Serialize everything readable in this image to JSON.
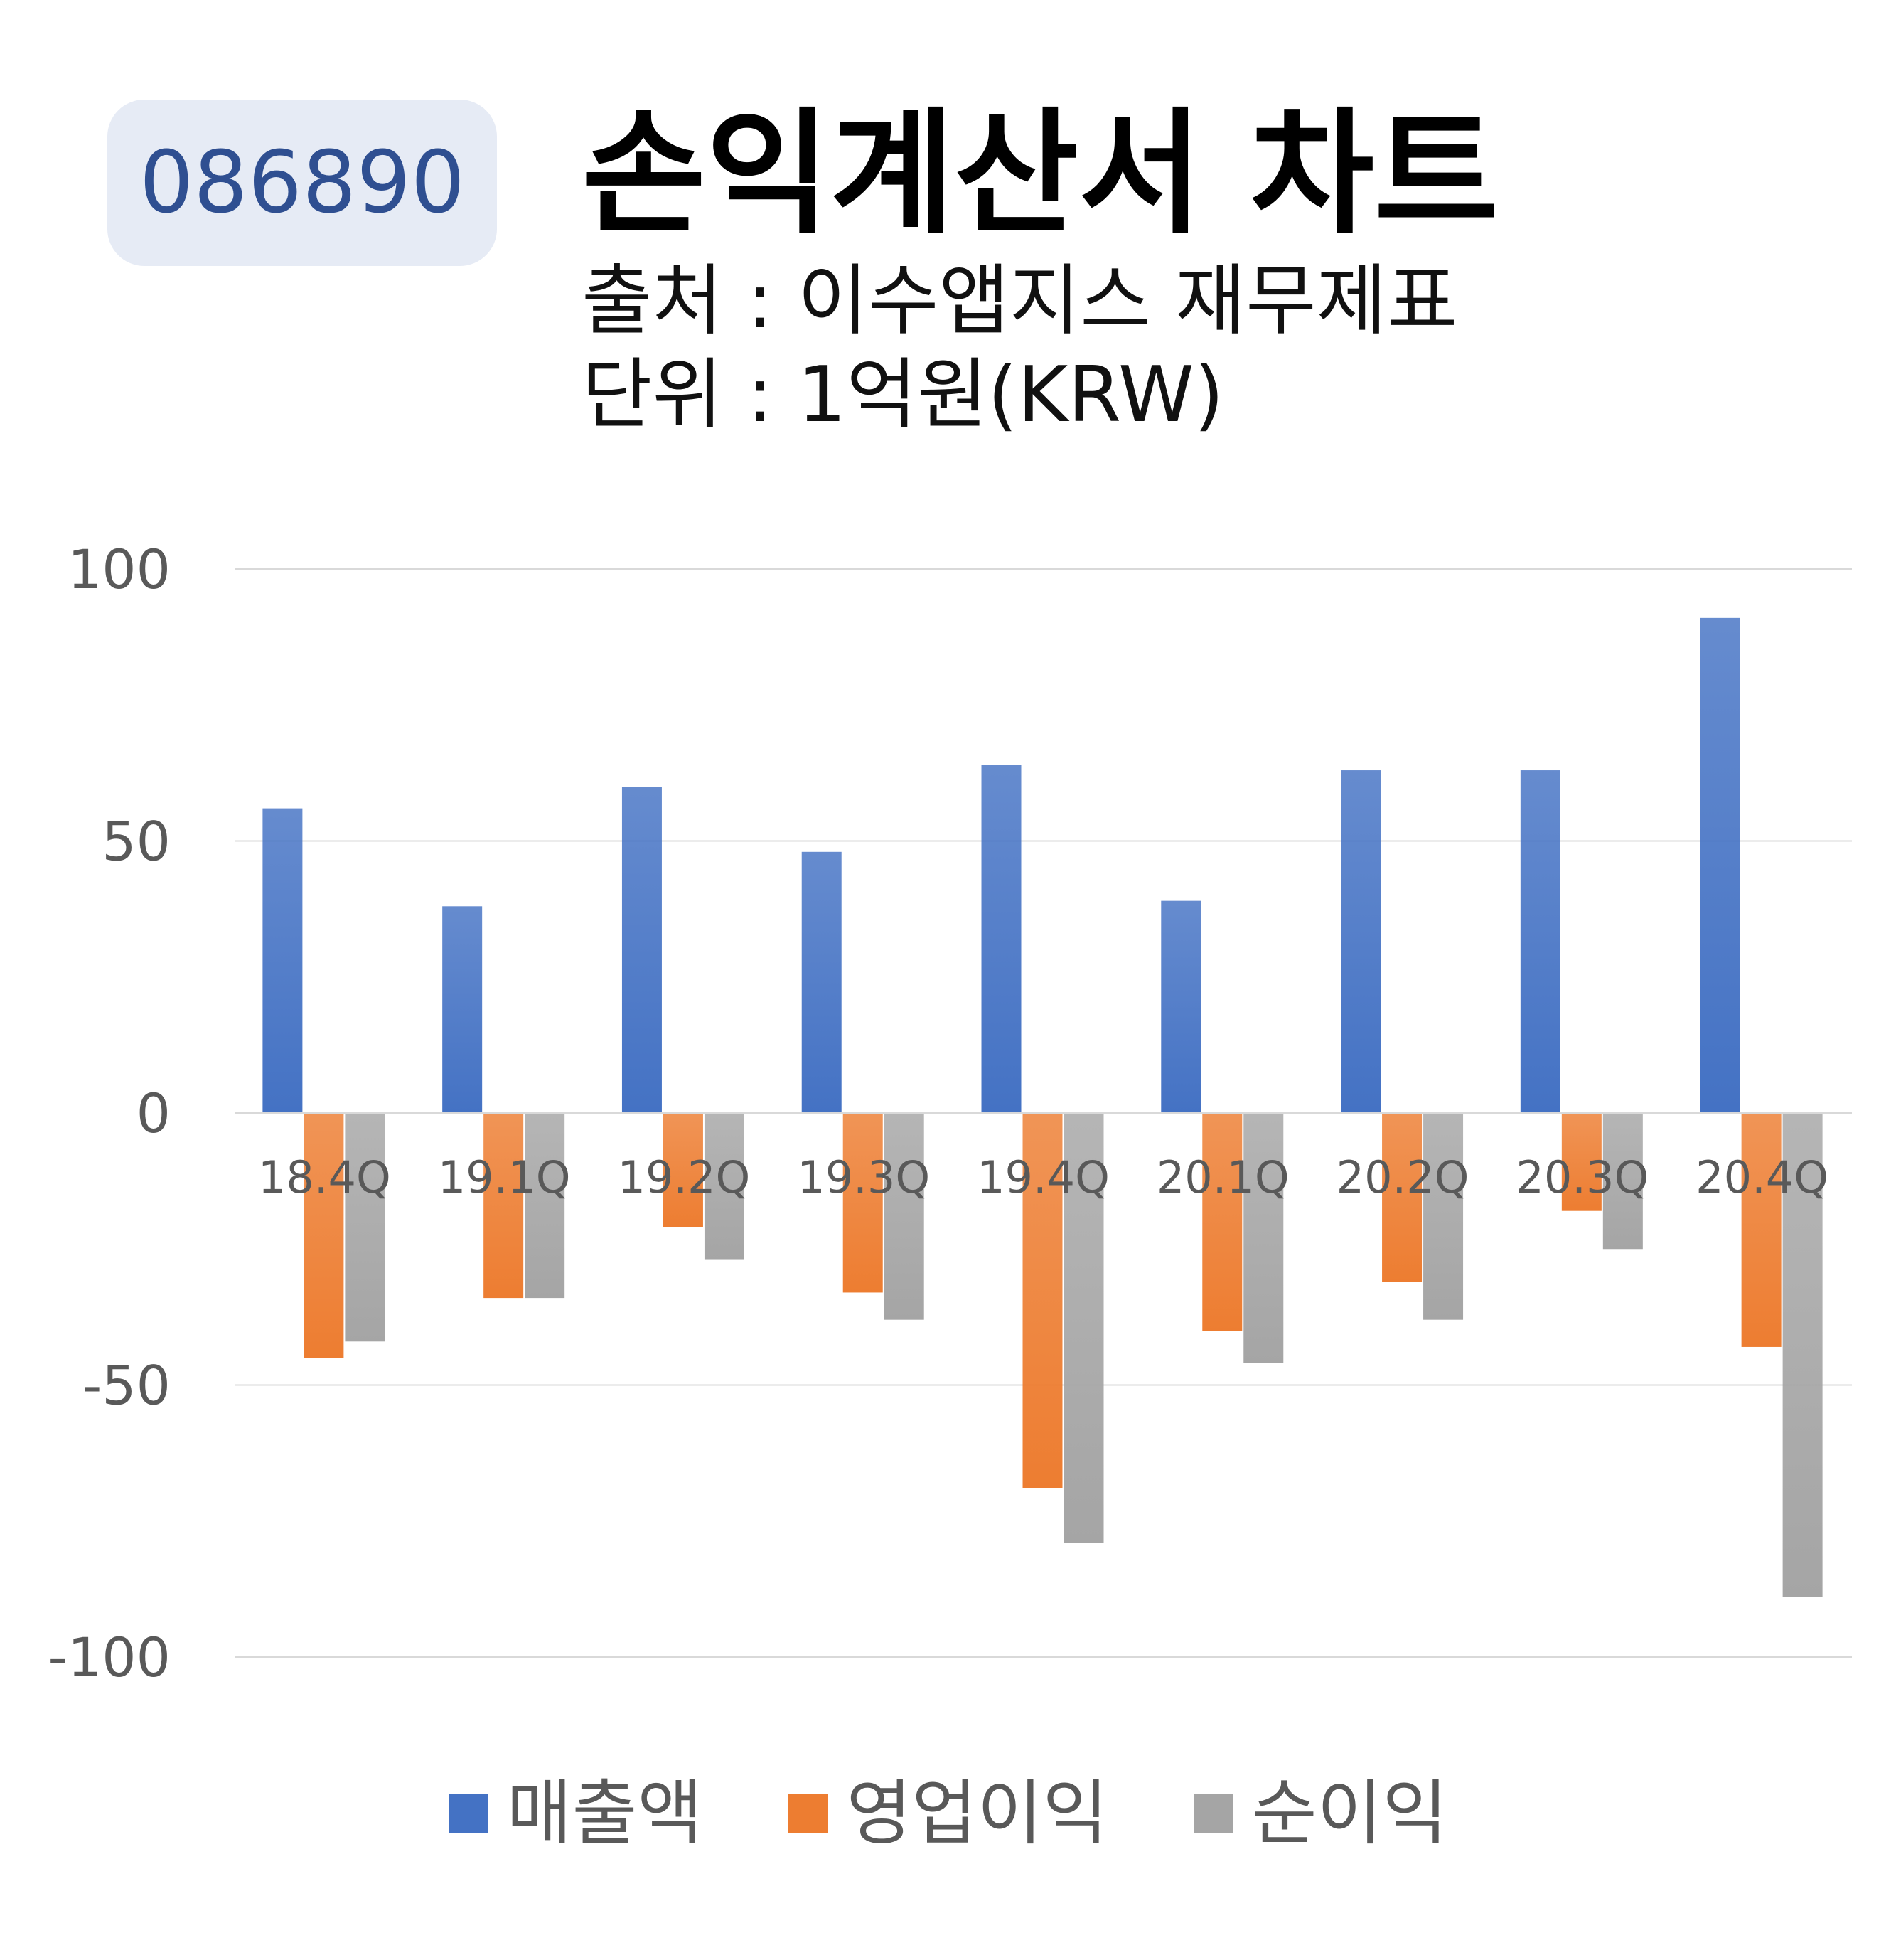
{
  "header": {
    "stock_code": "086890",
    "title": "손익계산서 차트",
    "source": "출처 : 이수앱지스 재무제표",
    "unit": "단위 : 1억원(KRW)"
  },
  "colors": {
    "badge_bg": "#e6ebf5",
    "badge_text": "#2f4f91",
    "revenue": "#4472c4",
    "operating_income": "#ed7d31",
    "net_income": "#a5a5a5",
    "gridline": "#d9d9d9",
    "axis_text": "#595959"
  },
  "chart_data": {
    "type": "bar",
    "categories": [
      "18.4Q",
      "19.1Q",
      "19.2Q",
      "19.3Q",
      "19.4Q",
      "20.1Q",
      "20.2Q",
      "20.3Q",
      "20.4Q"
    ],
    "series": [
      {
        "name": "매출액",
        "values": [
          56,
          38,
          60,
          48,
          64,
          39,
          63,
          63,
          91
        ]
      },
      {
        "name": "영업이익",
        "values": [
          -45,
          -34,
          -21,
          -33,
          -69,
          -40,
          -31,
          -18,
          -43
        ]
      },
      {
        "name": "순이익",
        "values": [
          -42,
          -34,
          -27,
          -38,
          -79,
          -46,
          -38,
          -25,
          -89
        ]
      }
    ],
    "ylim": [
      -100,
      100
    ],
    "yticks": [
      100,
      50,
      0,
      -50,
      -100
    ],
    "ytick_labels": [
      "100",
      "50",
      "0",
      "-50",
      "-100"
    ],
    "grid": true,
    "legend_position": "bottom"
  }
}
